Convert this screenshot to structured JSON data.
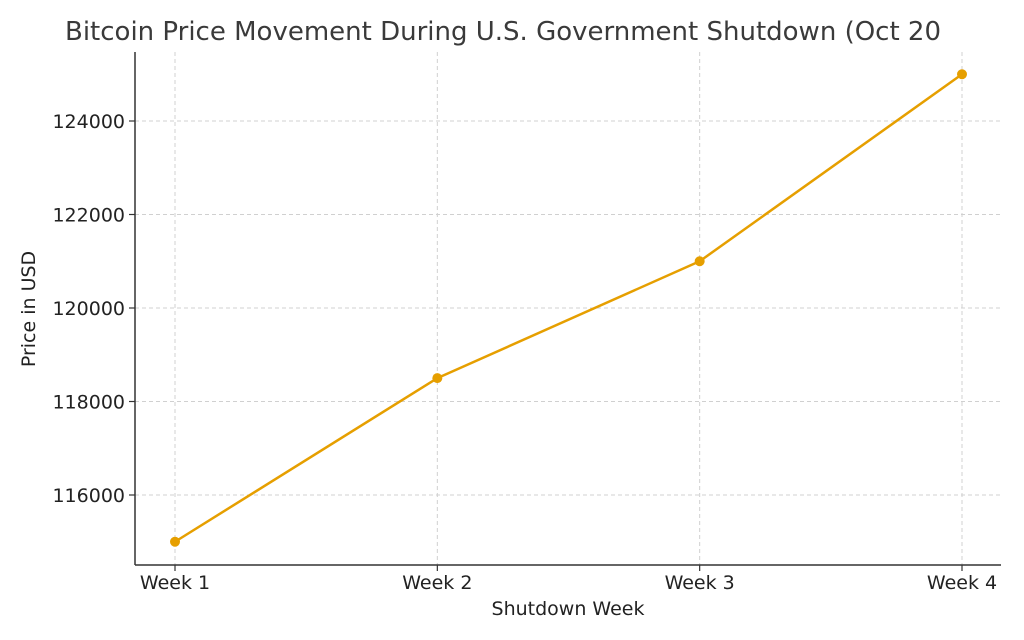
{
  "chart_data": {
    "type": "line",
    "title": "Bitcoin Price Movement During U.S. Government Shutdown (Oct 20",
    "xlabel": "Shutdown Week",
    "ylabel": "Price in USD",
    "categories": [
      "Week 1",
      "Week 2",
      "Week 3",
      "Week 4"
    ],
    "series": [
      {
        "name": "Bitcoin Price",
        "values": [
          115000,
          118500,
          121000,
          125000
        ],
        "color": "#E69F00"
      }
    ],
    "yticks": [
      116000,
      118000,
      120000,
      122000,
      124000
    ],
    "ytick_labels": [
      "116000",
      "118000",
      "120000",
      "122000",
      "124000"
    ],
    "ylim": [
      114500,
      125500
    ],
    "grid": true,
    "marker": "circle"
  }
}
